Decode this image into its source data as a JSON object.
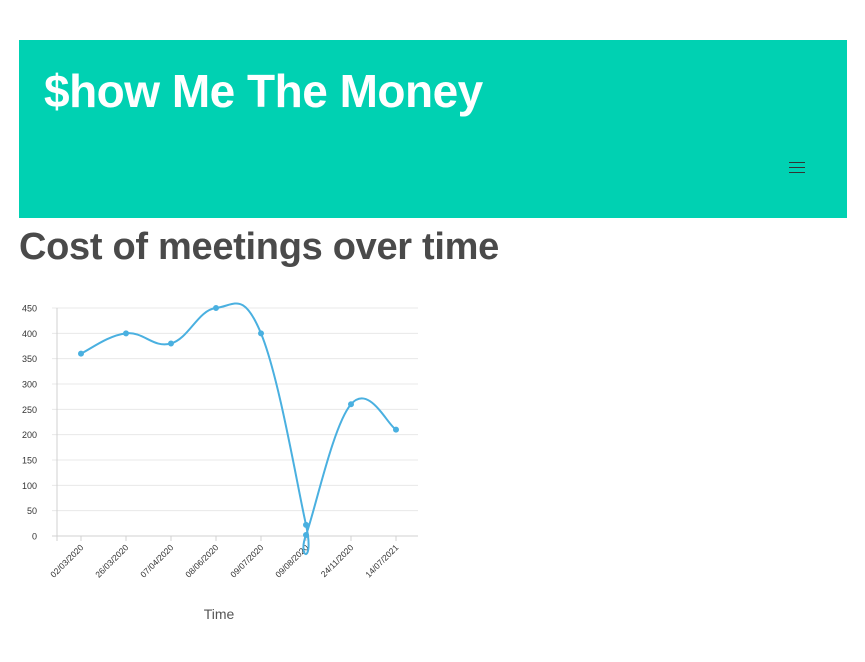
{
  "header": {
    "title": "$how Me The Money",
    "menu_icon": "hamburger-menu-icon"
  },
  "page": {
    "heading": "Cost of meetings over time"
  },
  "colors": {
    "header_bg": "#00d1b2",
    "line": "#4ab0e0"
  },
  "chart_data": {
    "type": "line",
    "xlabel": "Time",
    "ylabel": "",
    "ylim": [
      0,
      450
    ],
    "y_ticks": [
      0,
      50,
      100,
      150,
      200,
      250,
      300,
      350,
      400,
      450
    ],
    "x_ticks": [
      "02/03/2020",
      "26/03/2020",
      "07/04/2020",
      "08/06/2020",
      "09/07/2020",
      "09/08/2020",
      "24/11/2020",
      "14/07/2021"
    ],
    "points": [
      {
        "x": "02/03/2020",
        "y": 360
      },
      {
        "x": "26/03/2020",
        "y": 400
      },
      {
        "x": "07/04/2020",
        "y": 380
      },
      {
        "x": "08/06/2020",
        "y": 450
      },
      {
        "x": "09/07/2020",
        "y": 400
      },
      {
        "x": "09/08/2020",
        "y": 22
      },
      {
        "x": "09/08/2020",
        "y": 2
      },
      {
        "x": "24/11/2020",
        "y": 260
      },
      {
        "x": "14/07/2021",
        "y": 210
      }
    ],
    "grid": true,
    "legend": "none"
  }
}
